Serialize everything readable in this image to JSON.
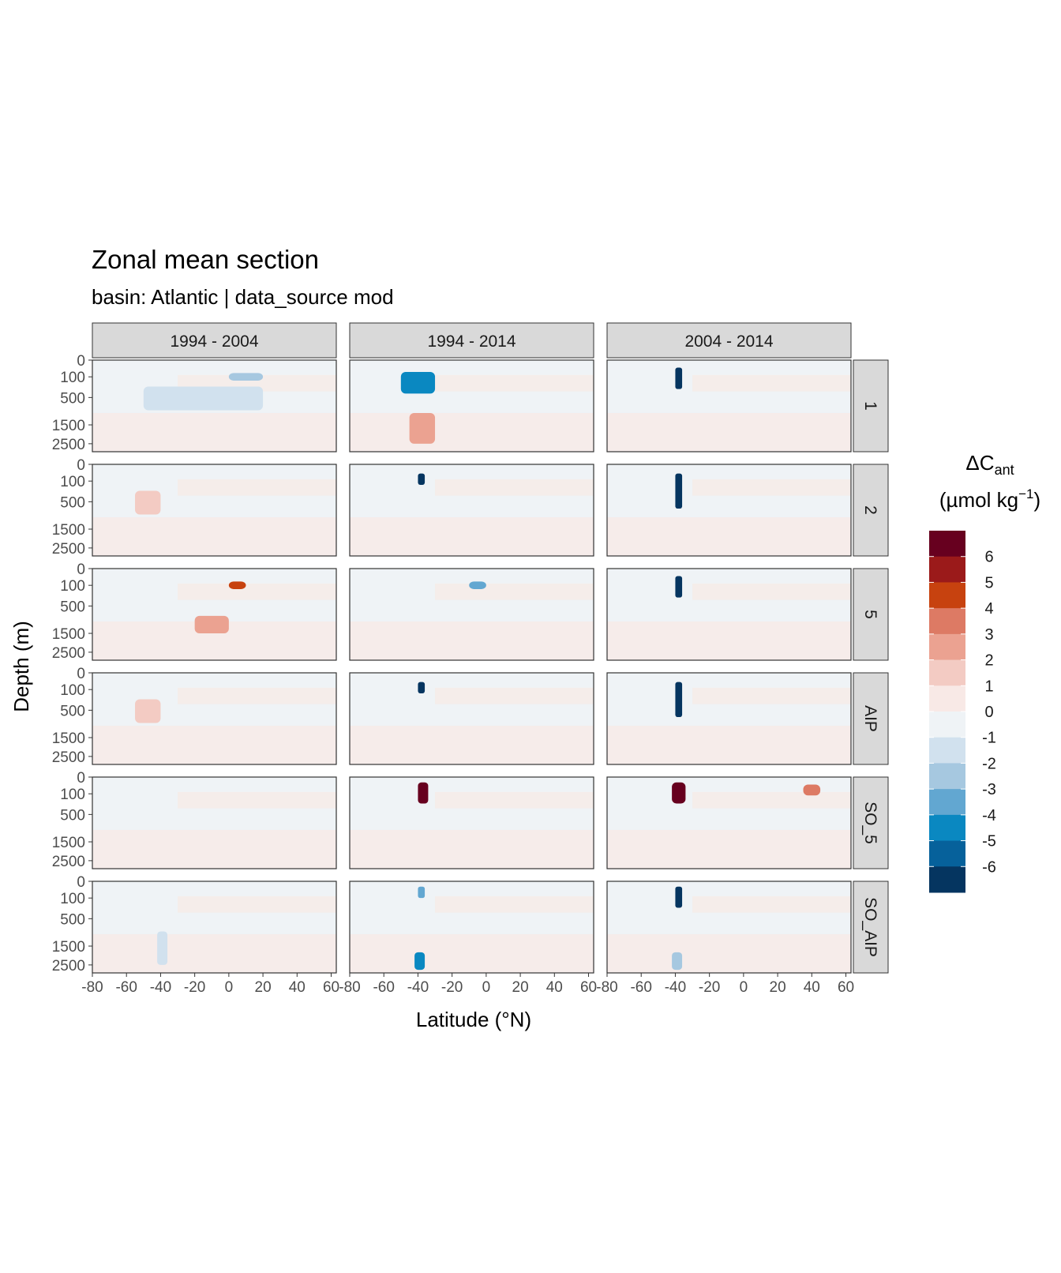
{
  "chart_data": {
    "type": "heatmap",
    "title": "Zonal mean section",
    "subtitle": "basin: Atlantic | data_source mod",
    "xlabel": "Latitude (°N)",
    "ylabel": "Depth (m)",
    "x_ticks": [
      "-80",
      "-60",
      "-40",
      "-20",
      "0",
      "20",
      "40",
      "60"
    ],
    "x_tick_values": [
      -80,
      -60,
      -40,
      -20,
      0,
      20,
      40,
      60
    ],
    "xlim": [
      -80,
      63
    ],
    "y_ticks": [
      "0",
      "100",
      "500",
      "1500",
      "2500"
    ],
    "y_tick_values": [
      0,
      100,
      500,
      1500,
      2500
    ],
    "ylim": [
      0,
      3000
    ],
    "y_scale": "reversed sqrt",
    "col_facets": [
      "1994 - 2004",
      "1994 - 2014",
      "2004 - 2014"
    ],
    "row_facets": [
      "1",
      "2",
      "5",
      "AIP",
      "SO_5",
      "SO_AIP"
    ],
    "legend": {
      "title_main": "ΔC",
      "title_sub": "ant",
      "title_unit_prefix": "(µmol kg",
      "title_unit_sup": "−1",
      "title_unit_suffix": ")",
      "position": "right",
      "labels": [
        "6",
        "5",
        "4",
        "3",
        "2",
        "1",
        "0",
        "-1",
        "-2",
        "-3",
        "-4",
        "-5",
        "-6"
      ],
      "colors": [
        "#67001f",
        "#9b1a1a",
        "#c7420f",
        "#dd7a64",
        "#eba291",
        "#f3cbc3",
        "#f8e9e6",
        "#eff3f6",
        "#d1e1ee",
        "#a6c8e0",
        "#62a7d1",
        "#0a88c1",
        "#06619b",
        "#053560"
      ]
    },
    "background_value": "0 to 1 / -1 to 0 (near zero everywhere)",
    "features": [
      {
        "row": "1",
        "col": "1994 - 2004",
        "lat": [
          -50,
          20
        ],
        "depth": [
          250,
          900
        ],
        "level": "-2 to -1",
        "color": "#d1e1ee"
      },
      {
        "row": "1",
        "col": "1994 - 2004",
        "lat": [
          0,
          20
        ],
        "depth": [
          60,
          150
        ],
        "level": "-3 to -2",
        "color": "#a6c8e0"
      },
      {
        "row": "1",
        "col": "1994 - 2014",
        "lat": [
          -50,
          -30
        ],
        "depth": [
          50,
          400
        ],
        "level": "-5 to -4",
        "color": "#0a88c1"
      },
      {
        "row": "1",
        "col": "1994 - 2014",
        "lat": [
          -45,
          -30
        ],
        "depth": [
          1000,
          2500
        ],
        "level": "2 to 3",
        "color": "#eba291"
      },
      {
        "row": "1",
        "col": "2004 - 2014",
        "lat": [
          -40,
          -36
        ],
        "depth": [
          20,
          300
        ],
        "level": "< -6",
        "color": "#053560"
      },
      {
        "row": "2",
        "col": "1994 - 2004",
        "lat": [
          -55,
          -40
        ],
        "depth": [
          250,
          900
        ],
        "level": "1 to 2",
        "color": "#f3cbc3"
      },
      {
        "row": "2",
        "col": "1994 - 2014",
        "lat": [
          -40,
          -36
        ],
        "depth": [
          30,
          150
        ],
        "level": "< -6",
        "color": "#053560"
      },
      {
        "row": "2",
        "col": "2004 - 2014",
        "lat": [
          -40,
          -36
        ],
        "depth": [
          30,
          700
        ],
        "level": "< -6",
        "color": "#053560"
      },
      {
        "row": "5",
        "col": "1994 - 2004",
        "lat": [
          0,
          10
        ],
        "depth": [
          60,
          150
        ],
        "level": "3 to 5",
        "color": "#c7420f"
      },
      {
        "row": "5",
        "col": "1994 - 2004",
        "lat": [
          -20,
          0
        ],
        "depth": [
          800,
          1500
        ],
        "level": "2 to 3",
        "color": "#eba291"
      },
      {
        "row": "5",
        "col": "1994 - 2014",
        "lat": [
          -10,
          0
        ],
        "depth": [
          60,
          150
        ],
        "level": "-4 to -3",
        "color": "#62a7d1"
      },
      {
        "row": "5",
        "col": "2004 - 2014",
        "lat": [
          -40,
          -36
        ],
        "depth": [
          20,
          300
        ],
        "level": "< -6",
        "color": "#053560"
      },
      {
        "row": "AIP",
        "col": "1994 - 2004",
        "lat": [
          -55,
          -40
        ],
        "depth": [
          250,
          900
        ],
        "level": "1 to 2",
        "color": "#f3cbc3"
      },
      {
        "row": "AIP",
        "col": "1994 - 2014",
        "lat": [
          -40,
          -36
        ],
        "depth": [
          30,
          150
        ],
        "level": "< -6",
        "color": "#053560"
      },
      {
        "row": "AIP",
        "col": "2004 - 2014",
        "lat": [
          -40,
          -36
        ],
        "depth": [
          30,
          700
        ],
        "level": "< -6",
        "color": "#053560"
      },
      {
        "row": "SO_5",
        "col": "1994 - 2014",
        "lat": [
          -40,
          -34
        ],
        "depth": [
          10,
          250
        ],
        "level": "> 6",
        "color": "#67001f"
      },
      {
        "row": "SO_5",
        "col": "2004 - 2014",
        "lat": [
          -42,
          -34
        ],
        "depth": [
          10,
          250
        ],
        "level": "> 6",
        "color": "#67001f"
      },
      {
        "row": "SO_5",
        "col": "2004 - 2014",
        "lat": [
          35,
          45
        ],
        "depth": [
          20,
          120
        ],
        "level": "3 to 4",
        "color": "#dd7a64"
      },
      {
        "row": "SO_AIP",
        "col": "1994 - 2004",
        "lat": [
          -42,
          -36
        ],
        "depth": [
          900,
          2500
        ],
        "level": "-2 to -1",
        "color": "#d1e1ee"
      },
      {
        "row": "SO_AIP",
        "col": "1994 - 2014",
        "lat": [
          -42,
          -36
        ],
        "depth": [
          1800,
          2800
        ],
        "level": "-5 to -4",
        "color": "#0a88c1"
      },
      {
        "row": "SO_AIP",
        "col": "1994 - 2014",
        "lat": [
          -40,
          -36
        ],
        "depth": [
          10,
          100
        ],
        "level": "-4 to -3",
        "color": "#62a7d1"
      },
      {
        "row": "SO_AIP",
        "col": "2004 - 2014",
        "lat": [
          -40,
          -36
        ],
        "depth": [
          10,
          250
        ],
        "level": "< -6",
        "color": "#053560"
      },
      {
        "row": "SO_AIP",
        "col": "2004 - 2014",
        "lat": [
          -42,
          -36
        ],
        "depth": [
          1800,
          2800
        ],
        "level": "-3 to -2",
        "color": "#a6c8e0"
      }
    ]
  }
}
